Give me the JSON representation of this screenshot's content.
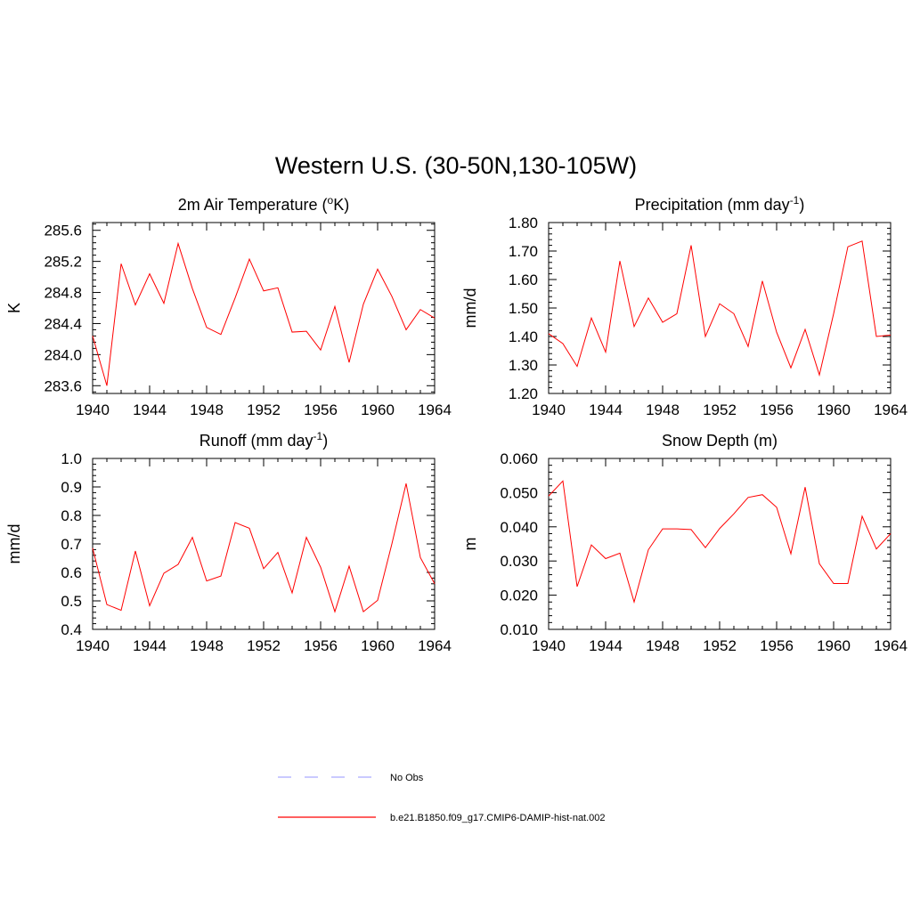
{
  "title": "Western U.S. (30-50N,130-105W)",
  "legend": [
    {
      "label": "No Obs",
      "color": "#aaaaff",
      "dash": true
    },
    {
      "label": "b.e21.B1850.f09_g17.CMIP6-DAMIP-hist-nat.002",
      "color": "#ff0000",
      "dash": false
    }
  ],
  "chart_data": [
    {
      "type": "line",
      "title": "2m Air Temperature (°K)",
      "title_main": "2m Air Temperature (",
      "title_sup": "o",
      "title_after": "K)",
      "ylabel": "K",
      "xlim": [
        1940,
        1964
      ],
      "ylim": [
        283.5,
        285.7
      ],
      "xticks": [
        1940,
        1944,
        1948,
        1952,
        1956,
        1960,
        1964
      ],
      "yticks": [
        283.6,
        284.0,
        284.4,
        284.8,
        285.2,
        285.6
      ],
      "ytick_labels": [
        "283.6",
        "284.0",
        "284.4",
        "284.8",
        "285.2",
        "285.6"
      ],
      "series": [
        {
          "color": "#ff0000",
          "x": [
            1940,
            1941,
            1942,
            1943,
            1944,
            1945,
            1946,
            1947,
            1948,
            1949,
            1950,
            1951,
            1952,
            1953,
            1954,
            1955,
            1956,
            1957,
            1958,
            1959,
            1960,
            1961,
            1962,
            1963,
            1964
          ],
          "y": [
            284.24,
            283.6,
            285.17,
            284.64,
            285.04,
            284.66,
            285.43,
            284.85,
            284.35,
            284.26,
            284.73,
            285.23,
            284.82,
            284.86,
            284.29,
            284.3,
            284.06,
            284.62,
            283.9,
            284.65,
            285.1,
            284.75,
            284.32,
            284.58,
            284.47
          ]
        }
      ]
    },
    {
      "type": "line",
      "title": "Precipitation (mm day-1)",
      "title_main": "Precipitation (mm day",
      "title_sup": "-1",
      "title_after": ")",
      "ylabel": "mm/d",
      "xlim": [
        1940,
        1964
      ],
      "ylim": [
        1.2,
        1.8
      ],
      "xticks": [
        1940,
        1944,
        1948,
        1952,
        1956,
        1960,
        1964
      ],
      "yticks": [
        1.2,
        1.3,
        1.4,
        1.5,
        1.6,
        1.7,
        1.8
      ],
      "ytick_labels": [
        "1.20",
        "1.30",
        "1.40",
        "1.50",
        "1.60",
        "1.70",
        "1.80"
      ],
      "series": [
        {
          "color": "#ff0000",
          "x": [
            1940,
            1941,
            1942,
            1943,
            1944,
            1945,
            1946,
            1947,
            1948,
            1949,
            1950,
            1951,
            1952,
            1953,
            1954,
            1955,
            1956,
            1957,
            1958,
            1959,
            1960,
            1961,
            1962,
            1963,
            1964
          ],
          "y": [
            1.41,
            1.375,
            1.295,
            1.465,
            1.345,
            1.665,
            1.435,
            1.535,
            1.45,
            1.48,
            1.72,
            1.4,
            1.515,
            1.48,
            1.365,
            1.595,
            1.415,
            1.29,
            1.425,
            1.265,
            1.48,
            1.715,
            1.735,
            1.4,
            1.405
          ]
        }
      ]
    },
    {
      "type": "line",
      "title": "Runoff (mm day-1)",
      "title_main": "Runoff (mm day",
      "title_sup": "-1",
      "title_after": ")",
      "ylabel": "mm/d",
      "xlim": [
        1940,
        1964
      ],
      "ylim": [
        0.4,
        1.0
      ],
      "xticks": [
        1940,
        1944,
        1948,
        1952,
        1956,
        1960,
        1964
      ],
      "yticks": [
        0.4,
        0.5,
        0.6,
        0.7,
        0.8,
        0.9,
        1.0
      ],
      "ytick_labels": [
        "0.4",
        "0.5",
        "0.6",
        "0.7",
        "0.8",
        "0.9",
        "1.0"
      ],
      "series": [
        {
          "color": "#ff0000",
          "x": [
            1940,
            1941,
            1942,
            1943,
            1944,
            1945,
            1946,
            1947,
            1948,
            1949,
            1950,
            1951,
            1952,
            1953,
            1954,
            1955,
            1956,
            1957,
            1958,
            1959,
            1960,
            1961,
            1962,
            1963,
            1964
          ],
          "y": [
            0.685,
            0.487,
            0.467,
            0.675,
            0.483,
            0.597,
            0.628,
            0.723,
            0.57,
            0.587,
            0.775,
            0.755,
            0.613,
            0.67,
            0.528,
            0.723,
            0.618,
            0.462,
            0.622,
            0.462,
            0.502,
            0.7,
            0.912,
            0.652,
            0.56
          ]
        }
      ]
    },
    {
      "type": "line",
      "title": "Snow Depth (m)",
      "title_main": "Snow Depth (m)",
      "title_sup": "",
      "title_after": "",
      "ylabel": "m",
      "xlim": [
        1940,
        1964
      ],
      "ylim": [
        0.01,
        0.06
      ],
      "xticks": [
        1940,
        1944,
        1948,
        1952,
        1956,
        1960,
        1964
      ],
      "yticks": [
        0.01,
        0.02,
        0.03,
        0.04,
        0.05,
        0.06
      ],
      "ytick_labels": [
        "0.010",
        "0.020",
        "0.030",
        "0.040",
        "0.050",
        "0.060"
      ],
      "series": [
        {
          "color": "#ff0000",
          "x": [
            1940,
            1941,
            1942,
            1943,
            1944,
            1945,
            1946,
            1947,
            1948,
            1949,
            1950,
            1951,
            1952,
            1953,
            1954,
            1955,
            1956,
            1957,
            1958,
            1959,
            1960,
            1961,
            1962,
            1963,
            1964
          ],
          "y": [
            0.049,
            0.0534,
            0.0225,
            0.0347,
            0.0307,
            0.0323,
            0.018,
            0.0333,
            0.0394,
            0.0394,
            0.0392,
            0.0339,
            0.0395,
            0.0438,
            0.0486,
            0.0494,
            0.0457,
            0.0321,
            0.0516,
            0.0292,
            0.0234,
            0.0234,
            0.0431,
            0.0335,
            0.038
          ]
        }
      ]
    }
  ]
}
